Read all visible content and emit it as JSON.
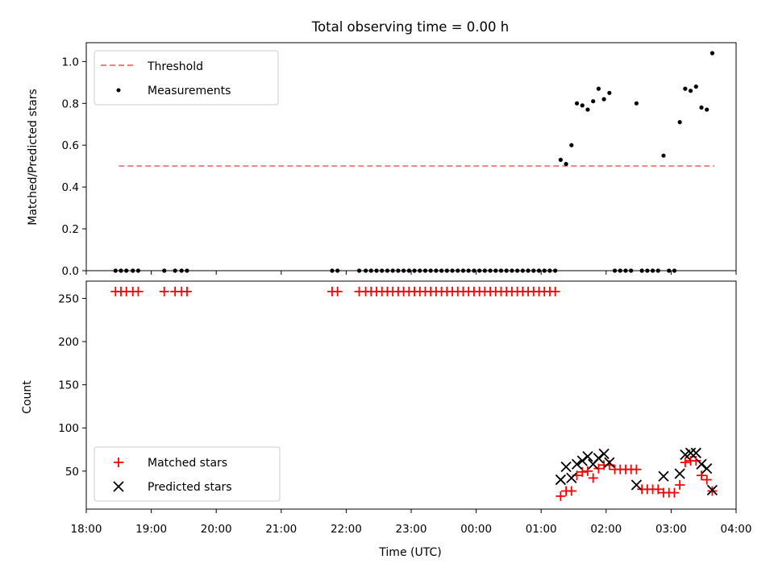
{
  "chart_data": [
    {
      "type": "scatter",
      "title": "Total observing time = 0.00 h",
      "xlabel": "",
      "ylabel": "Matched/Predicted stars",
      "xlim_hours": [
        18.0,
        28.0
      ],
      "ylim": [
        0.0,
        1.09
      ],
      "yticks": [
        "0.0",
        "0.2",
        "0.4",
        "0.6",
        "0.8",
        "1.0"
      ],
      "legend_position": "upper-left",
      "legend": [
        "Threshold",
        "Measurements"
      ],
      "threshold": {
        "name": "Threshold",
        "value": 0.5,
        "x_start": "18:30",
        "x_end": "03:40",
        "color": "#f08080"
      },
      "series": [
        {
          "name": "Measurements",
          "color": "#000000",
          "points": [
            [
              "18:27",
              0
            ],
            [
              "18:32",
              0
            ],
            [
              "18:37",
              0
            ],
            [
              "18:43",
              0
            ],
            [
              "18:48",
              0
            ],
            [
              "19:12",
              0
            ],
            [
              "19:22",
              0
            ],
            [
              "19:28",
              0
            ],
            [
              "19:33",
              0
            ],
            [
              "21:47",
              0
            ],
            [
              "21:52",
              0
            ],
            [
              "22:12",
              0
            ],
            [
              "22:18",
              0
            ],
            [
              "22:23",
              0
            ],
            [
              "22:28",
              0
            ],
            [
              "22:33",
              0
            ],
            [
              "22:38",
              0
            ],
            [
              "22:43",
              0
            ],
            [
              "22:48",
              0
            ],
            [
              "22:53",
              0
            ],
            [
              "22:58",
              0
            ],
            [
              "23:03",
              0
            ],
            [
              "23:08",
              0
            ],
            [
              "23:13",
              0
            ],
            [
              "23:18",
              0
            ],
            [
              "23:23",
              0
            ],
            [
              "23:28",
              0
            ],
            [
              "23:33",
              0
            ],
            [
              "23:38",
              0
            ],
            [
              "23:43",
              0
            ],
            [
              "23:48",
              0
            ],
            [
              "23:53",
              0
            ],
            [
              "23:58",
              0
            ],
            [
              "00:03",
              0
            ],
            [
              "00:08",
              0
            ],
            [
              "00:13",
              0
            ],
            [
              "00:18",
              0
            ],
            [
              "00:23",
              0
            ],
            [
              "00:28",
              0
            ],
            [
              "00:33",
              0
            ],
            [
              "00:38",
              0
            ],
            [
              "00:43",
              0
            ],
            [
              "00:48",
              0
            ],
            [
              "00:53",
              0
            ],
            [
              "00:58",
              0
            ],
            [
              "01:03",
              0
            ],
            [
              "01:08",
              0
            ],
            [
              "01:13",
              0
            ],
            [
              "01:18",
              0.53
            ],
            [
              "01:23",
              0.51
            ],
            [
              "01:28",
              0.6
            ],
            [
              "01:33",
              0.8
            ],
            [
              "01:38",
              0.79
            ],
            [
              "01:43",
              0.77
            ],
            [
              "01:48",
              0.81
            ],
            [
              "01:53",
              0.87
            ],
            [
              "01:58",
              0.82
            ],
            [
              "02:03",
              0.85
            ],
            [
              "02:08",
              0
            ],
            [
              "02:13",
              0
            ],
            [
              "02:18",
              0
            ],
            [
              "02:23",
              0
            ],
            [
              "02:28",
              0.8
            ],
            [
              "02:33",
              0
            ],
            [
              "02:38",
              0
            ],
            [
              "02:43",
              0
            ],
            [
              "02:48",
              0
            ],
            [
              "02:53",
              0.55
            ],
            [
              "02:58",
              0
            ],
            [
              "03:03",
              0
            ],
            [
              "03:08",
              0.71
            ],
            [
              "03:13",
              0.87
            ],
            [
              "03:18",
              0.86
            ],
            [
              "03:23",
              0.88
            ],
            [
              "03:28",
              0.78
            ],
            [
              "03:33",
              0.77
            ],
            [
              "03:38",
              1.04
            ]
          ]
        }
      ]
    },
    {
      "type": "scatter",
      "title": "",
      "xlabel": "Time (UTC)",
      "ylabel": "Count",
      "xlim_hours": [
        18.0,
        28.0
      ],
      "ylim": [
        6,
        270
      ],
      "yticks": [
        50,
        100,
        150,
        200,
        250
      ],
      "xticks": [
        "18:00",
        "19:00",
        "20:00",
        "21:00",
        "22:00",
        "23:00",
        "00:00",
        "01:00",
        "02:00",
        "03:00",
        "04:00"
      ],
      "legend_position": "lower-left",
      "legend": [
        "Matched stars",
        "Predicted stars"
      ],
      "series": [
        {
          "name": "Matched stars",
          "marker": "+",
          "color": "#ff0000",
          "points": [
            [
              "18:27",
              258
            ],
            [
              "18:32",
              258
            ],
            [
              "18:37",
              258
            ],
            [
              "18:43",
              258
            ],
            [
              "18:48",
              258
            ],
            [
              "19:12",
              258
            ],
            [
              "19:22",
              258
            ],
            [
              "19:28",
              258
            ],
            [
              "19:33",
              258
            ],
            [
              "21:47",
              258
            ],
            [
              "21:52",
              258
            ],
            [
              "22:12",
              258
            ],
            [
              "22:18",
              258
            ],
            [
              "22:23",
              258
            ],
            [
              "22:28",
              258
            ],
            [
              "22:33",
              258
            ],
            [
              "22:38",
              258
            ],
            [
              "22:43",
              258
            ],
            [
              "22:48",
              258
            ],
            [
              "22:53",
              258
            ],
            [
              "22:58",
              258
            ],
            [
              "23:03",
              258
            ],
            [
              "23:08",
              258
            ],
            [
              "23:13",
              258
            ],
            [
              "23:18",
              258
            ],
            [
              "23:23",
              258
            ],
            [
              "23:28",
              258
            ],
            [
              "23:33",
              258
            ],
            [
              "23:38",
              258
            ],
            [
              "23:43",
              258
            ],
            [
              "23:48",
              258
            ],
            [
              "23:53",
              258
            ],
            [
              "23:58",
              258
            ],
            [
              "00:03",
              258
            ],
            [
              "00:08",
              258
            ],
            [
              "00:13",
              258
            ],
            [
              "00:18",
              258
            ],
            [
              "00:23",
              258
            ],
            [
              "00:28",
              258
            ],
            [
              "00:33",
              258
            ],
            [
              "00:38",
              258
            ],
            [
              "00:43",
              258
            ],
            [
              "00:48",
              258
            ],
            [
              "00:53",
              258
            ],
            [
              "00:58",
              258
            ],
            [
              "01:03",
              258
            ],
            [
              "01:08",
              258
            ],
            [
              "01:13",
              258
            ],
            [
              "01:18",
              21
            ],
            [
              "01:23",
              27
            ],
            [
              "01:28",
              27
            ],
            [
              "01:33",
              45
            ],
            [
              "01:38",
              49
            ],
            [
              "01:43",
              50
            ],
            [
              "01:48",
              42
            ],
            [
              "01:53",
              53
            ],
            [
              "01:58",
              57
            ],
            [
              "02:03",
              57
            ],
            [
              "02:08",
              52
            ],
            [
              "02:13",
              52
            ],
            [
              "02:18",
              52
            ],
            [
              "02:23",
              52
            ],
            [
              "02:28",
              52
            ],
            [
              "02:33",
              29
            ],
            [
              "02:38",
              29
            ],
            [
              "02:43",
              29
            ],
            [
              "02:48",
              29
            ],
            [
              "02:53",
              25
            ],
            [
              "02:58",
              25
            ],
            [
              "03:03",
              25
            ],
            [
              "03:08",
              34
            ],
            [
              "03:13",
              60
            ],
            [
              "03:18",
              62
            ],
            [
              "03:23",
              62
            ],
            [
              "03:28",
              45
            ],
            [
              "03:33",
              40
            ],
            [
              "03:38",
              27
            ]
          ]
        },
        {
          "name": "Predicted stars",
          "marker": "x",
          "color": "#000000",
          "points": [
            [
              "01:18",
              40
            ],
            [
              "01:23",
              55
            ],
            [
              "01:28",
              42
            ],
            [
              "01:33",
              58
            ],
            [
              "01:38",
              62
            ],
            [
              "01:43",
              67
            ],
            [
              "01:48",
              58
            ],
            [
              "01:53",
              65
            ],
            [
              "01:58",
              70
            ],
            [
              "02:03",
              60
            ],
            [
              "02:28",
              34
            ],
            [
              "02:53",
              44
            ],
            [
              "03:08",
              47
            ],
            [
              "03:13",
              69
            ],
            [
              "03:18",
              71
            ],
            [
              "03:23",
              71
            ],
            [
              "03:28",
              58
            ],
            [
              "03:33",
              53
            ],
            [
              "03:38",
              28
            ]
          ]
        }
      ]
    }
  ]
}
